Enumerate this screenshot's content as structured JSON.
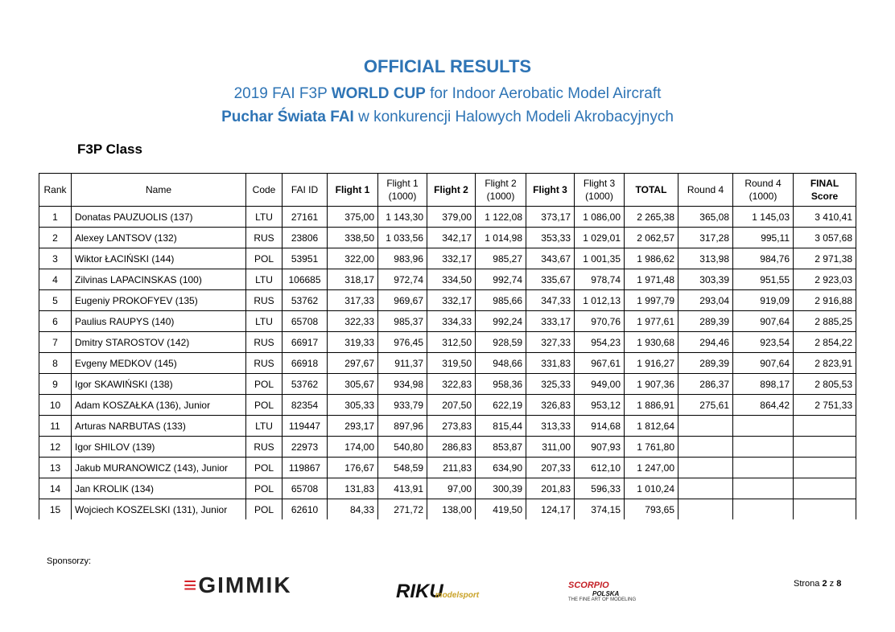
{
  "header": {
    "title": "OFFICIAL RESULTS",
    "line2": [
      "2019 FAI F3P",
      "WORLD CUP",
      "for Indoor Aerobatic Model Aircraft"
    ],
    "line3": [
      "Puchar Świata FAI",
      "w konkurencji Halowych Modeli Akrobacyjnych"
    ],
    "class": "F3P Class"
  },
  "table": {
    "columns": [
      "Rank",
      "Name",
      "Code",
      "FAI ID",
      "Flight 1",
      "Flight 1 (1000)",
      "Flight 2",
      "Flight 2 (1000)",
      "Flight 3",
      "Flight 3 (1000)",
      "TOTAL",
      "Round 4",
      "Round 4 (1000)",
      "FINAL Score"
    ],
    "rows": [
      [
        "1",
        "Donatas PAUZUOLIS (137)",
        "LTU",
        "27161",
        "375,00",
        "1 143,30",
        "379,00",
        "1 122,08",
        "373,17",
        "1 086,00",
        "2 265,38",
        "365,08",
        "1 145,03",
        "3 410,41"
      ],
      [
        "2",
        "Alexey LANTSOV (132)",
        "RUS",
        "23806",
        "338,50",
        "1 033,56",
        "342,17",
        "1 014,98",
        "353,33",
        "1 029,01",
        "2 062,57",
        "317,28",
        "995,11",
        "3 057,68"
      ],
      [
        "3",
        "Wiktor ŁACIŃSKI (144)",
        "POL",
        "53951",
        "322,00",
        "983,96",
        "332,17",
        "985,27",
        "343,67",
        "1 001,35",
        "1 986,62",
        "313,98",
        "984,76",
        "2 971,38"
      ],
      [
        "4",
        "Zilvinas LAPACINSKAS (100)",
        "LTU",
        "106685",
        "318,17",
        "972,74",
        "334,50",
        "992,74",
        "335,67",
        "978,74",
        "1 971,48",
        "303,39",
        "951,55",
        "2 923,03"
      ],
      [
        "5",
        "Eugeniy PROKOFYEV (135)",
        "RUS",
        "53762",
        "317,33",
        "969,67",
        "332,17",
        "985,66",
        "347,33",
        "1 012,13",
        "1 997,79",
        "293,04",
        "919,09",
        "2 916,88"
      ],
      [
        "6",
        "Paulius RAUPYS (140)",
        "LTU",
        "65708",
        "322,33",
        "985,37",
        "334,33",
        "992,24",
        "333,17",
        "970,76",
        "1 977,61",
        "289,39",
        "907,64",
        "2 885,25"
      ],
      [
        "7",
        "Dmitry STAROSTOV (142)",
        "RUS",
        "66917",
        "319,33",
        "976,45",
        "312,50",
        "928,59",
        "327,33",
        "954,23",
        "1 930,68",
        "294,46",
        "923,54",
        "2 854,22"
      ],
      [
        "8",
        "Evgeny MEDKOV (145)",
        "RUS",
        "66918",
        "297,67",
        "911,37",
        "319,50",
        "948,66",
        "331,83",
        "967,61",
        "1 916,27",
        "289,39",
        "907,64",
        "2 823,91"
      ],
      [
        "9",
        "Igor SKAWIŃSKI (138)",
        "POL",
        "53762",
        "305,67",
        "934,98",
        "322,83",
        "958,36",
        "325,33",
        "949,00",
        "1 907,36",
        "286,37",
        "898,17",
        "2 805,53"
      ],
      [
        "10",
        "Adam KOSZAŁKA (136), Junior",
        "POL",
        "82354",
        "305,33",
        "933,79",
        "207,50",
        "622,19",
        "326,83",
        "953,12",
        "1 886,91",
        "275,61",
        "864,42",
        "2 751,33"
      ],
      [
        "11",
        "Arturas NARBUTAS (133)",
        "LTU",
        "119447",
        "293,17",
        "897,96",
        "273,83",
        "815,44",
        "313,33",
        "914,68",
        "1 812,64"
      ],
      [
        "12",
        "Igor SHILOV (139)",
        "RUS",
        "22973",
        "174,00",
        "540,80",
        "286,83",
        "853,87",
        "311,00",
        "907,93",
        "1 761,80"
      ],
      [
        "13",
        "Jakub MURANOWICZ (143), Junior",
        "POL",
        "119867",
        "176,67",
        "548,59",
        "211,83",
        "634,90",
        "207,33",
        "612,10",
        "1 247,00"
      ],
      [
        "14",
        "Jan KROLIK (134)",
        "POL",
        "65708",
        "131,83",
        "413,91",
        "97,00",
        "300,39",
        "201,83",
        "596,33",
        "1 010,24"
      ],
      [
        "15",
        "Wojciech KOSZELSKI (131), Junior",
        "POL",
        "62610",
        "84,33",
        "271,72",
        "138,00",
        "419,50",
        "124,17",
        "374,15",
        "793,65"
      ]
    ]
  },
  "footer": {
    "sponsors_label": "Sponsorzy:",
    "sponsors": [
      "GIMMIK",
      "RIKU",
      "modelsport",
      "SCORPIO",
      "POLSKA",
      "THE FINE ART OF MODELING"
    ],
    "page": [
      "Strona",
      "2",
      "z",
      "8"
    ]
  }
}
